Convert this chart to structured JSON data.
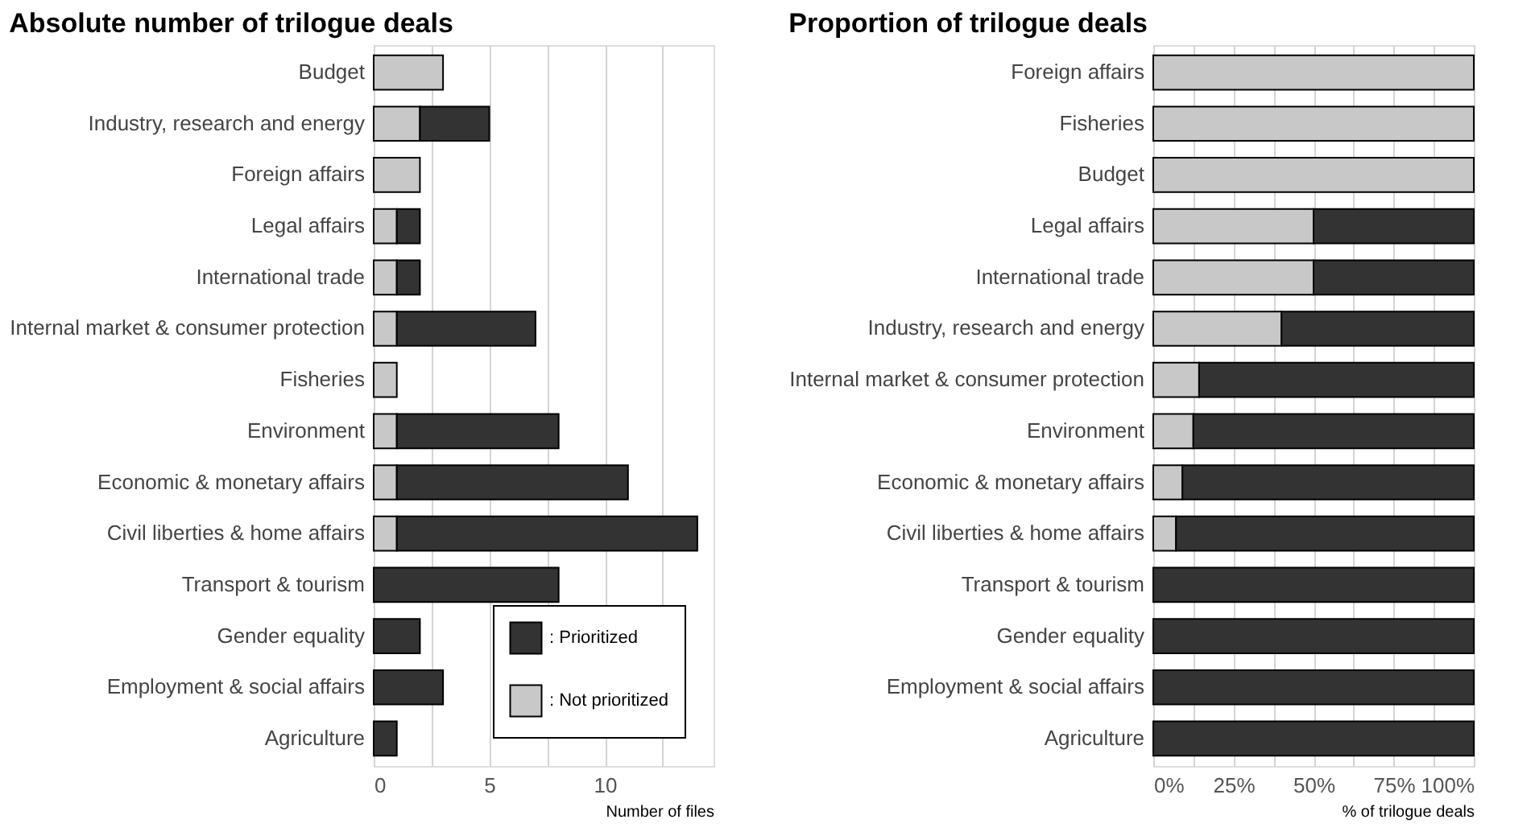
{
  "chart_data": [
    {
      "type": "bar",
      "orientation": "horizontal",
      "stacked": true,
      "title": "Absolute number of trilogue deals",
      "xlabel": "Number of files",
      "categories": [
        "Budget",
        "Industry, research and energy",
        "Foreign affairs",
        "Legal affairs",
        "International trade",
        "Internal market & consumer protection",
        "Fisheries",
        "Environment",
        "Economic & monetary affairs",
        "Civil liberties & home affairs",
        "Transport & tourism",
        "Gender equality",
        "Employment & social affairs",
        "Agriculture"
      ],
      "series": [
        {
          "name": ": Not prioritized",
          "color": "#c8c8c8",
          "values": [
            3,
            2,
            2,
            1,
            1,
            1,
            1,
            1,
            1,
            1,
            null,
            null,
            null,
            null
          ]
        },
        {
          "name": ": Prioritized",
          "color": "#333333",
          "values": [
            null,
            3,
            null,
            1,
            1,
            6,
            null,
            7,
            10,
            13,
            8,
            2,
            3,
            1
          ]
        }
      ],
      "xlim": [
        0,
        14.7
      ],
      "xticks": [
        0,
        {
          "value": 2.5,
          "label": null
        },
        5,
        {
          "value": 7.5,
          "label": null
        },
        10,
        {
          "value": 12.5,
          "label": null
        }
      ],
      "grid": "x",
      "legend": "bottom right"
    },
    {
      "type": "bar",
      "orientation": "horizontal",
      "stacked": true,
      "title": "Proportion of trilogue deals",
      "xlabel": "% of trilogue deals",
      "categories": [
        "Foreign affairs",
        "Fisheries",
        "Budget",
        "Legal affairs",
        "International trade",
        "Industry, research and energy",
        "Internal market & consumer protection",
        "Environment",
        "Economic & monetary affairs",
        "Civil liberties & home affairs",
        "Transport & tourism",
        "Gender equality",
        "Employment & social affairs",
        "Agriculture"
      ],
      "series": [
        {
          "color": "#c8c8c8",
          "values": [
            100,
            100,
            100,
            50,
            50,
            40,
            14.3,
            12.5,
            9.1,
            7.1,
            null,
            null,
            null,
            null
          ]
        },
        {
          "color": "#333333",
          "values": [
            null,
            null,
            null,
            50,
            50,
            60,
            85.7,
            87.5,
            90.9,
            92.9,
            100,
            100,
            100,
            100
          ]
        }
      ],
      "xlim": [
        0,
        100
      ],
      "xticks": [
        {
          "value": 0,
          "label": "0%"
        },
        {
          "value": 12.5,
          "label": null
        },
        {
          "value": 25,
          "label": "25%"
        },
        {
          "value": 37.5,
          "label": null
        },
        {
          "value": 50,
          "label": "50%"
        },
        {
          "value": 62.5,
          "label": null
        },
        {
          "value": 75,
          "label": "75%"
        },
        {
          "value": 87.5,
          "label": null
        },
        {
          "value": 100,
          "label": "100%"
        }
      ],
      "grid": "x",
      "legend": false
    }
  ]
}
